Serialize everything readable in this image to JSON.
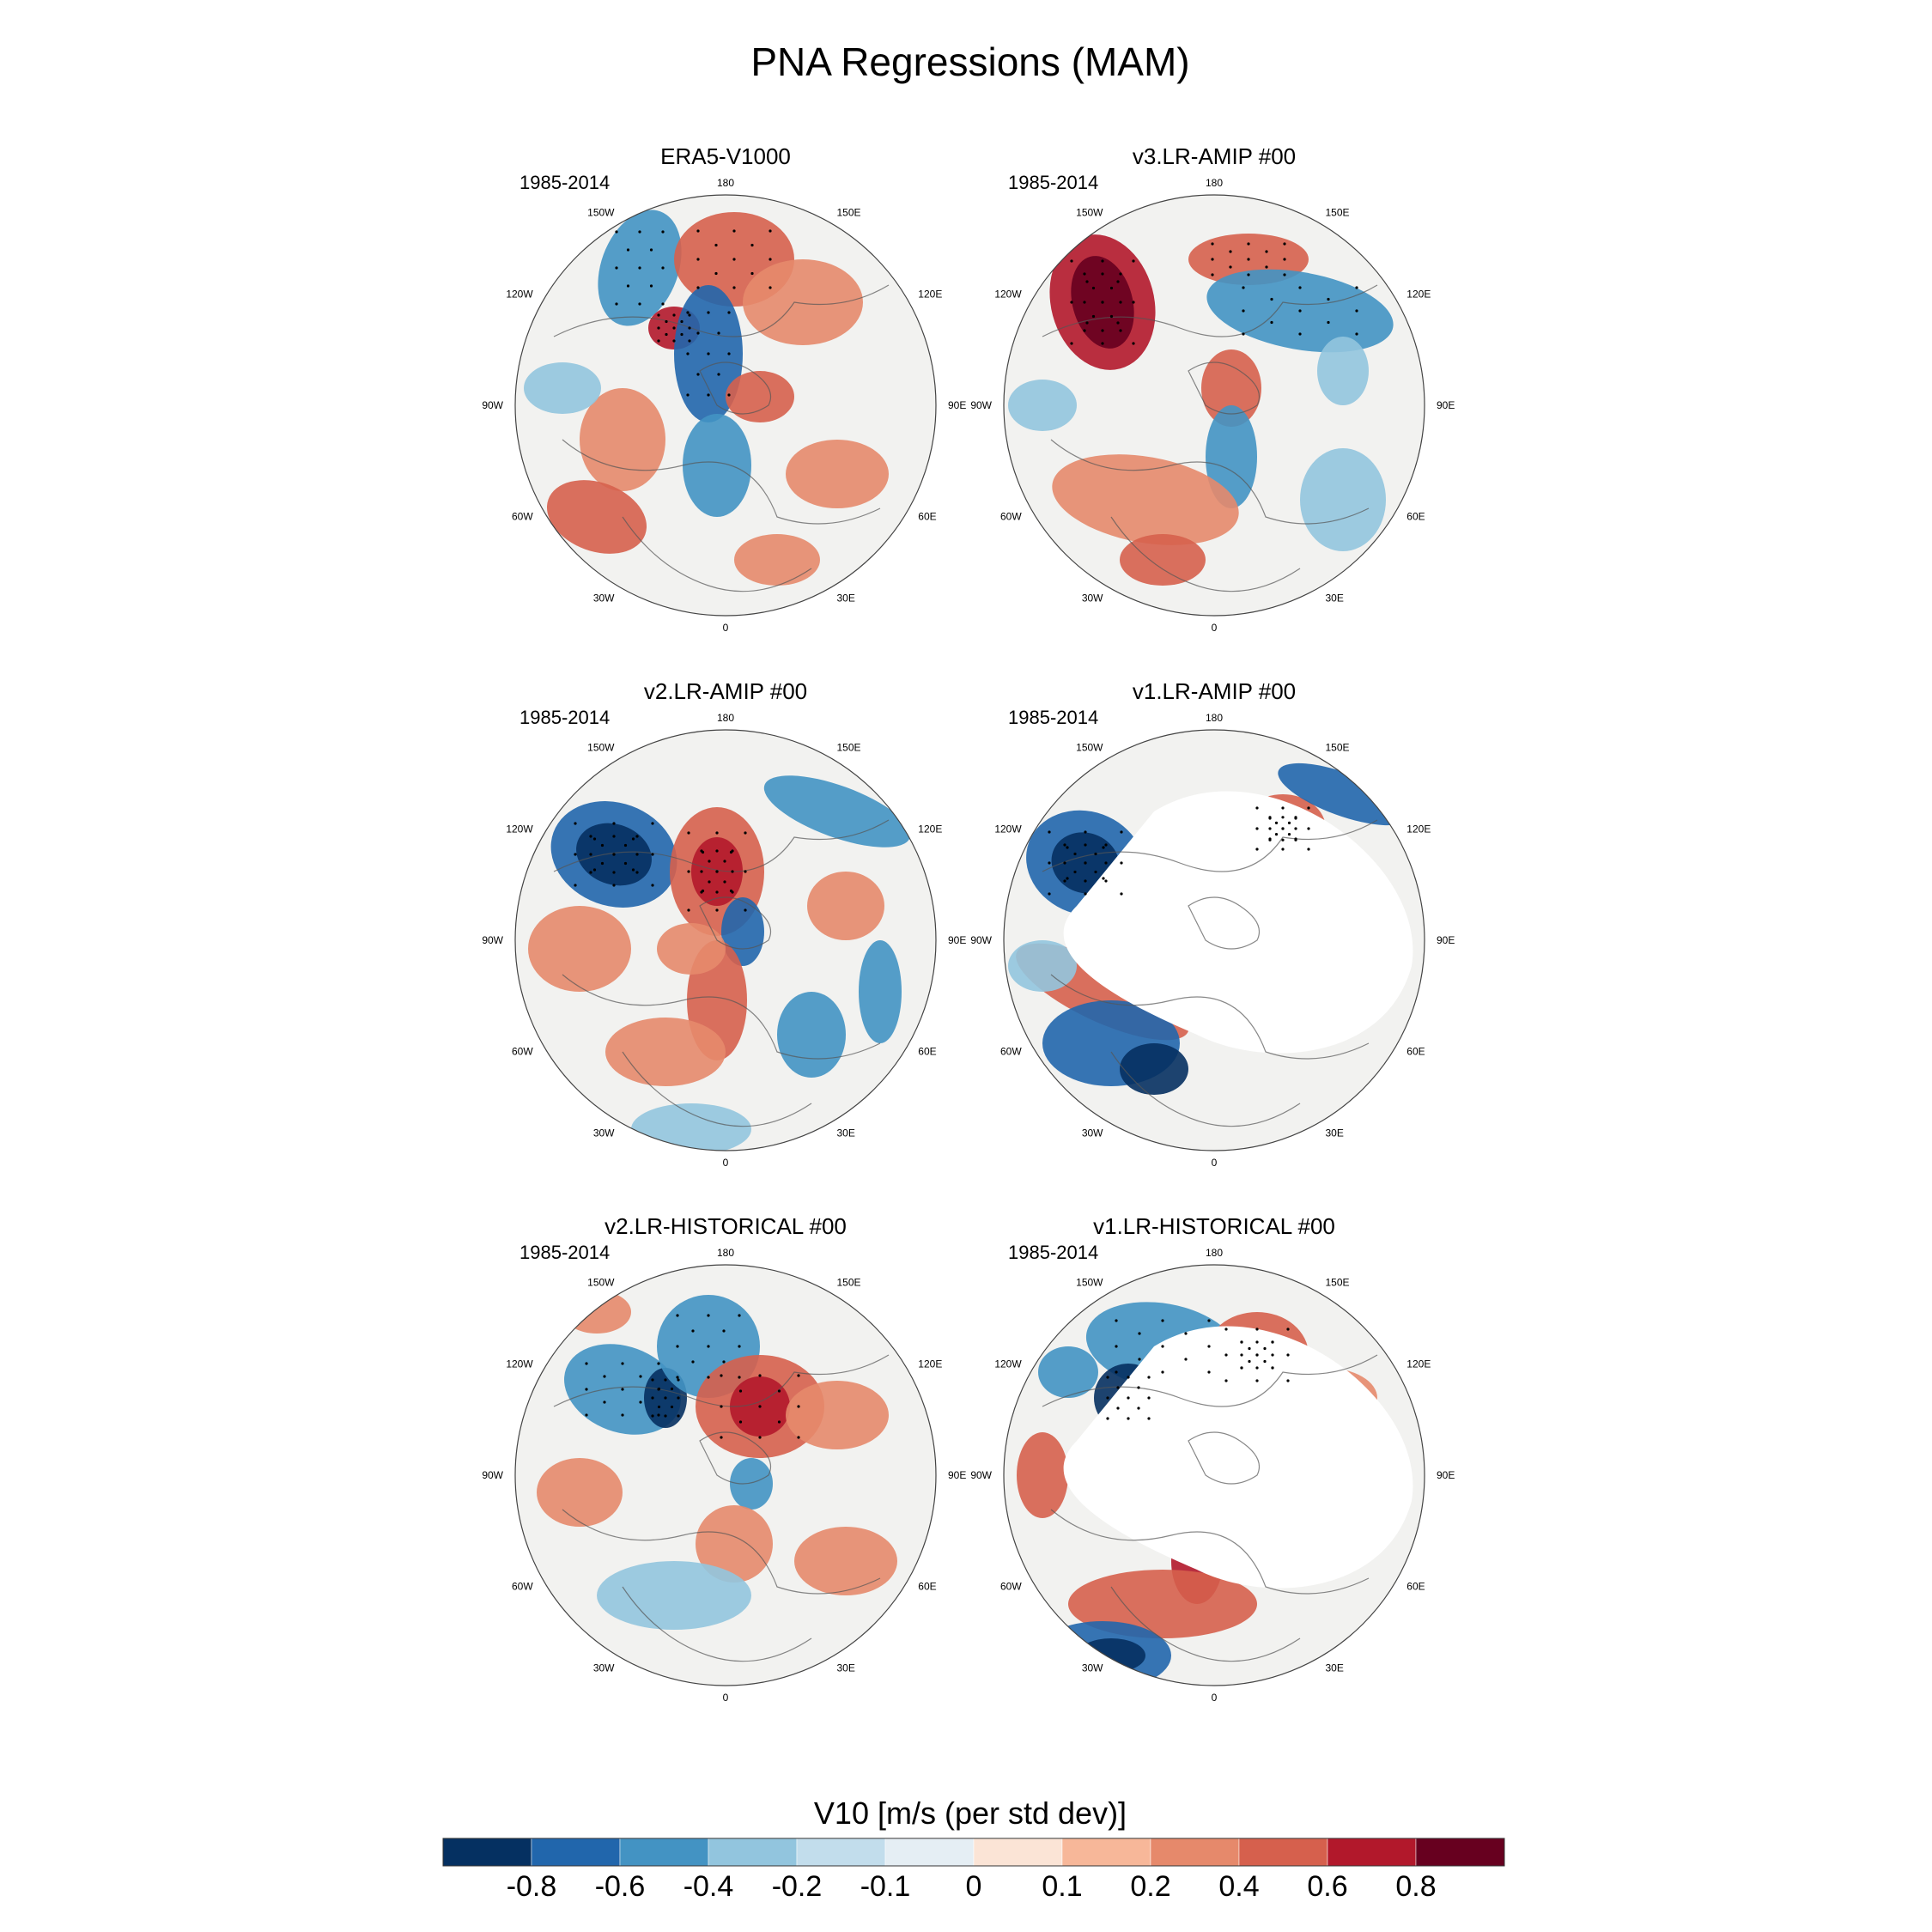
{
  "figure": {
    "title": "PNA Regressions (MAM)"
  },
  "period_label": "1985-2014",
  "longitude_labels": [
    "180",
    "150E",
    "120E",
    "90E",
    "60E",
    "30E",
    "0",
    "30W",
    "60W",
    "90W",
    "120W",
    "150W"
  ],
  "panels": [
    {
      "title": "ERA5-V1000",
      "missing_region": false
    },
    {
      "title": "v3.LR-AMIP  #00",
      "missing_region": false
    },
    {
      "title": "v2.LR-AMIP  #00",
      "missing_region": false
    },
    {
      "title": "v1.LR-AMIP  #00",
      "missing_region": true
    },
    {
      "title": "v2.LR-HISTORICAL  #00",
      "missing_region": false
    },
    {
      "title": "v1.LR-HISTORICAL  #00",
      "missing_region": true
    }
  ],
  "colorbar": {
    "title": "V10 [m/s (per std dev)]",
    "tick_labels": [
      "-0.8",
      "-0.6",
      "-0.4",
      "-0.2",
      "-0.1",
      "0",
      "0.1",
      "0.2",
      "0.4",
      "0.6",
      "0.8"
    ],
    "colors": [
      "#053061",
      "#2166ac",
      "#4393c3",
      "#92c5de",
      "#c2ddec",
      "#e5eef4",
      "#fbe4d6",
      "#f7b799",
      "#e6896b",
      "#d6604d",
      "#b2182b",
      "#67001f"
    ]
  }
}
